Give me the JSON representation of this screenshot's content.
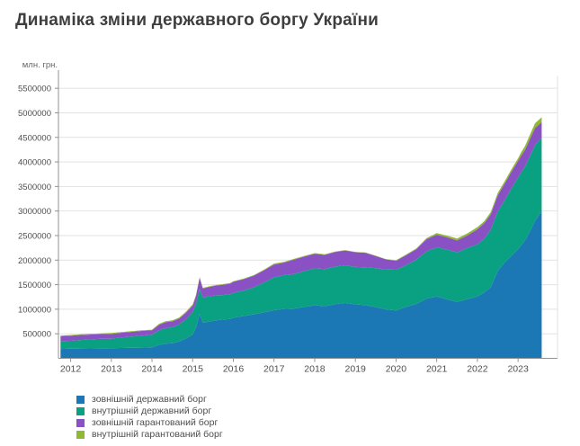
{
  "title": "Динаміка зміни державного боргу України",
  "chart_data": {
    "type": "area",
    "stacked": true,
    "title": "Динаміка зміни державного боргу України",
    "ylabel": "млн. грн.",
    "xlabel": "",
    "legend_position": "bottom-left",
    "grid": true,
    "xlim": [
      2011.7,
      2023.97
    ],
    "ylim": [
      0,
      5750000
    ],
    "x_ticks": [
      2012,
      2013,
      2014,
      2015,
      2016,
      2017,
      2018,
      2019,
      2020,
      2021,
      2022,
      2023
    ],
    "y_ticks": [
      500000,
      1000000,
      1500000,
      2000000,
      2500000,
      3000000,
      3500000,
      4000000,
      4500000,
      5000000,
      5500000
    ],
    "x": [
      2011.75,
      2012.0,
      2012.25,
      2012.5,
      2012.75,
      2013.0,
      2013.25,
      2013.5,
      2013.75,
      2014.0,
      2014.17,
      2014.33,
      2014.5,
      2014.67,
      2014.83,
      2015.0,
      2015.08,
      2015.17,
      2015.25,
      2015.42,
      2015.58,
      2015.75,
      2015.92,
      2016.0,
      2016.25,
      2016.5,
      2016.75,
      2017.0,
      2017.25,
      2017.5,
      2017.75,
      2018.0,
      2018.25,
      2018.5,
      2018.75,
      2019.0,
      2019.25,
      2019.5,
      2019.75,
      2020.0,
      2020.25,
      2020.5,
      2020.75,
      2021.0,
      2021.25,
      2021.5,
      2021.75,
      2022.0,
      2022.17,
      2022.33,
      2022.5,
      2022.67,
      2022.83,
      2023.0,
      2023.08,
      2023.17,
      2023.25,
      2023.33,
      2023.42,
      2023.5,
      2023.58
    ],
    "series": [
      {
        "name": "зовнішній державний борг",
        "key": "external-state-debt",
        "color": "#1b78b4",
        "values": [
          190000,
          195800,
          199000,
          201000,
          205000,
          208900,
          211000,
          214000,
          217000,
          223300,
          275000,
          298000,
          308000,
          345000,
          402000,
          486000,
          625000,
          905000,
          724000,
          750000,
          775000,
          790000,
          800000,
          826300,
          860000,
          895000,
          935000,
          980200,
          1005000,
          1015000,
          1048000,
          1080300,
          1060000,
          1105000,
          1128000,
          1099200,
          1082000,
          1043000,
          996000,
          974800,
          1048000,
          1108000,
          1216000,
          1258500,
          1200000,
          1150000,
          1205000,
          1258900,
          1340000,
          1450000,
          1780000,
          1950000,
          2080000,
          2224000,
          2310000,
          2400000,
          2520000,
          2650000,
          2800000,
          2900000,
          3000000
        ]
      },
      {
        "name": "внутрішній державний борг",
        "key": "internal-state-debt",
        "color": "#0aa183",
        "values": [
          159000,
          161500,
          175000,
          186000,
          192000,
          190300,
          214000,
          231000,
          247000,
          257000,
          296000,
          318000,
          326000,
          343000,
          396000,
          461000,
          480000,
          505000,
          512000,
          515000,
          508000,
          500000,
          505000,
          508000,
          520000,
          550000,
          610000,
          670600,
          690000,
          705000,
          730000,
          753400,
          758000,
          763000,
          768000,
          761100,
          772000,
          792000,
          815000,
          829500,
          852000,
          903000,
          965000,
          1000700,
          1015000,
          1005000,
          1045000,
          1062600,
          1100000,
          1170000,
          1210000,
          1270000,
          1370000,
          1459000,
          1480000,
          1500000,
          1520000,
          1540000,
          1545000,
          1520000,
          1500000
        ]
      },
      {
        "name": "зовнішній гарантований борг",
        "key": "external-guaranteed-debt",
        "color": "#8a51c5",
        "values": [
          103000,
          104000,
          102000,
          99000,
          97000,
          97600,
          96000,
          95000,
          94000,
          92800,
          110000,
          119000,
          121000,
          124000,
          126000,
          125900,
          160000,
          228000,
          185000,
          190000,
          200000,
          210000,
          215000,
          225600,
          232000,
          238000,
          248000,
          259800,
          255000,
          292000,
          296000,
          294700,
          290000,
          296000,
          299000,
          300500,
          296000,
          249000,
          205000,
          180900,
          200000,
          212000,
          245000,
          259500,
          250000,
          246000,
          252000,
          305500,
          310000,
          315000,
          330000,
          335000,
          338000,
          337000,
          340000,
          342000,
          345000,
          348000,
          349000,
          330000,
          310000
        ]
      },
      {
        "name": "внутрішній гарантований борг",
        "key": "internal-guaranteed-debt",
        "color": "#8fb933",
        "values": [
          12000,
          12300,
          13000,
          14000,
          15000,
          18700,
          16000,
          14000,
          13000,
          11400,
          18000,
          19000,
          18000,
          20000,
          22000,
          27900,
          25000,
          20000,
          15000,
          13000,
          12000,
          12000,
          12000,
          12100,
          11000,
          10000,
          10000,
          19100,
          16000,
          15000,
          14000,
          13300,
          11000,
          10000,
          9000,
          8000,
          8000,
          7000,
          6000,
          13000,
          15000,
          17000,
          25000,
          32800,
          35000,
          38000,
          41000,
          44800,
          45000,
          46000,
          48000,
          50000,
          51000,
          52000,
          70000,
          80000,
          85000,
          90000,
          95000,
          98000,
          100000
        ]
      }
    ],
    "colors": {
      "grid": "#e2e2e2",
      "axis": "#919191",
      "tick_label": "#4f4f4f",
      "title": "#3e3e3e"
    }
  }
}
